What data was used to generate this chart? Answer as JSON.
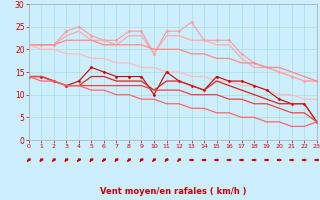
{
  "bg_color": "#cceeff",
  "grid_color": "#aadddd",
  "xlabel": "Vent moyen/en rafales ( km/h )",
  "xlabel_color": "#cc0000",
  "xlabel_fontsize": 6.0,
  "xtick_fontsize": 4.5,
  "ytick_fontsize": 5.5,
  "ytick_color": "#cc0000",
  "xtick_color": "#cc0000",
  "xlim": [
    0,
    23
  ],
  "ylim": [
    0,
    30
  ],
  "yticks": [
    0,
    5,
    10,
    15,
    20,
    25,
    30
  ],
  "xticks": [
    0,
    1,
    2,
    3,
    4,
    5,
    6,
    7,
    8,
    9,
    10,
    11,
    12,
    13,
    14,
    15,
    16,
    17,
    18,
    19,
    20,
    21,
    22,
    23
  ],
  "x": [
    0,
    1,
    2,
    3,
    4,
    5,
    6,
    7,
    8,
    9,
    10,
    11,
    12,
    13,
    14,
    15,
    16,
    17,
    18,
    19,
    20,
    21,
    22,
    23
  ],
  "line1_y": [
    21,
    21,
    21,
    24,
    25,
    23,
    22,
    22,
    24,
    24,
    19,
    24,
    24,
    26,
    22,
    22,
    22,
    19,
    17,
    16,
    15,
    14,
    13,
    13
  ],
  "line1_color": "#ff9999",
  "line1_lw": 0.8,
  "line1_marker": "D",
  "line1_ms": 1.5,
  "line2_y": [
    21,
    21,
    21,
    23,
    24,
    22,
    22,
    21,
    23,
    23,
    19,
    23,
    23,
    22,
    22,
    21,
    21,
    18,
    16,
    16,
    15,
    14,
    13,
    13
  ],
  "line2_color": "#ffaaaa",
  "line2_lw": 0.9,
  "line3_y": [
    21,
    21,
    21,
    22,
    22,
    22,
    21,
    21,
    21,
    21,
    20,
    20,
    20,
    19,
    19,
    18,
    18,
    17,
    17,
    16,
    16,
    15,
    14,
    13
  ],
  "line3_color": "#ff8888",
  "line3_lw": 0.9,
  "line4_y": [
    21,
    20,
    20,
    19,
    19,
    18,
    18,
    17,
    17,
    16,
    16,
    15,
    15,
    14,
    14,
    13,
    13,
    12,
    12,
    11,
    10,
    10,
    9,
    9
  ],
  "line4_color": "#ffbbbb",
  "line4_lw": 0.9,
  "line5_y": [
    14,
    14,
    13,
    12,
    13,
    16,
    15,
    14,
    14,
    14,
    10,
    15,
    13,
    12,
    11,
    14,
    13,
    13,
    12,
    11,
    9,
    8,
    8,
    4
  ],
  "line5_color": "#cc0000",
  "line5_lw": 0.8,
  "line5_marker": "D",
  "line5_ms": 1.5,
  "line6_y": [
    14,
    14,
    13,
    12,
    12,
    14,
    14,
    13,
    13,
    13,
    11,
    13,
    13,
    12,
    11,
    13,
    12,
    11,
    10,
    9,
    8,
    8,
    8,
    4
  ],
  "line6_color": "#dd2222",
  "line6_lw": 0.9,
  "line7_y": [
    14,
    14,
    13,
    12,
    12,
    12,
    12,
    12,
    12,
    12,
    11,
    11,
    11,
    10,
    10,
    10,
    9,
    9,
    8,
    8,
    7,
    6,
    6,
    4
  ],
  "line7_color": "#ee4444",
  "line7_lw": 0.9,
  "line8_y": [
    14,
    13,
    13,
    12,
    12,
    11,
    11,
    10,
    10,
    9,
    9,
    8,
    8,
    7,
    7,
    6,
    6,
    5,
    5,
    4,
    4,
    3,
    3,
    4
  ],
  "line8_color": "#ff6666",
  "line8_lw": 0.9,
  "arrow_color": "#cc0000",
  "arrow_diagonal_count": 13,
  "arrow_total_count": 24
}
